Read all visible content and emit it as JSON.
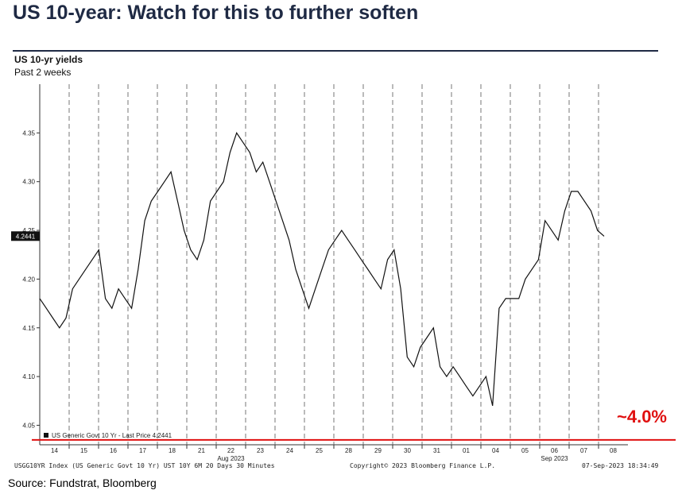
{
  "headline": "US 10-year: Watch for this to further soften",
  "source": "Source: Fundstrat, Bloomberg",
  "annotation": {
    "target_label": "~4.0%",
    "target_value": 4.035,
    "color": "#e01010"
  },
  "footer": {
    "left": "USGG10YR Index (US Generic Govt 10 Yr) UST 10Y 6M 20 Days 30 Minutes",
    "middle": "Copyright© 2023 Bloomberg Finance L.P.",
    "right": "07-Sep-2023 18:34:49"
  },
  "chart_data": {
    "type": "line",
    "title": "US 10-yr yields",
    "subtitle": "Past 2 weeks",
    "ylim": [
      4.03,
      4.4
    ],
    "yticks": [
      4.05,
      4.1,
      4.15,
      4.2,
      4.25,
      4.3,
      4.35
    ],
    "grid": false,
    "legend": "US Generic Govt 10 Yr - Last Price 4.2441",
    "last_price_label": "4.2441",
    "last_price": 4.2441,
    "day_labels": [
      "14",
      "15",
      "16",
      "17",
      "18",
      "21",
      "22",
      "23",
      "24",
      "25",
      "28",
      "29",
      "30",
      "31",
      "01",
      "04",
      "05",
      "06",
      "07",
      "08"
    ],
    "month_labels": [
      "Aug 2023",
      "Sep 2023"
    ],
    "series": [
      {
        "values": [
          4.18,
          4.17,
          4.16,
          4.15,
          4.16,
          4.19,
          4.2,
          4.21,
          4.22,
          4.23,
          4.18,
          4.17,
          4.19,
          4.18,
          4.17,
          4.21,
          4.26,
          4.28,
          4.29,
          4.3,
          4.31,
          4.28,
          4.25,
          4.23,
          4.22,
          4.24,
          4.28,
          4.29,
          4.3,
          4.33,
          4.35,
          4.34,
          4.33,
          4.31,
          4.32,
          4.3,
          4.28,
          4.26,
          4.24,
          4.21,
          4.19,
          4.17,
          4.19,
          4.21,
          4.23,
          4.24,
          4.25,
          4.24,
          4.23,
          4.22,
          4.21,
          4.2,
          4.19,
          4.22,
          4.23,
          4.19,
          4.12,
          4.11,
          4.13,
          4.14,
          4.15,
          4.11,
          4.1,
          4.11,
          4.1,
          4.09,
          4.08,
          4.09,
          4.1,
          4.07,
          4.17,
          4.18,
          4.18,
          4.18,
          4.2,
          4.21,
          4.22,
          4.26,
          4.25,
          4.24,
          4.27,
          4.29,
          4.29,
          4.28,
          4.27,
          4.25,
          4.244
        ]
      }
    ]
  }
}
